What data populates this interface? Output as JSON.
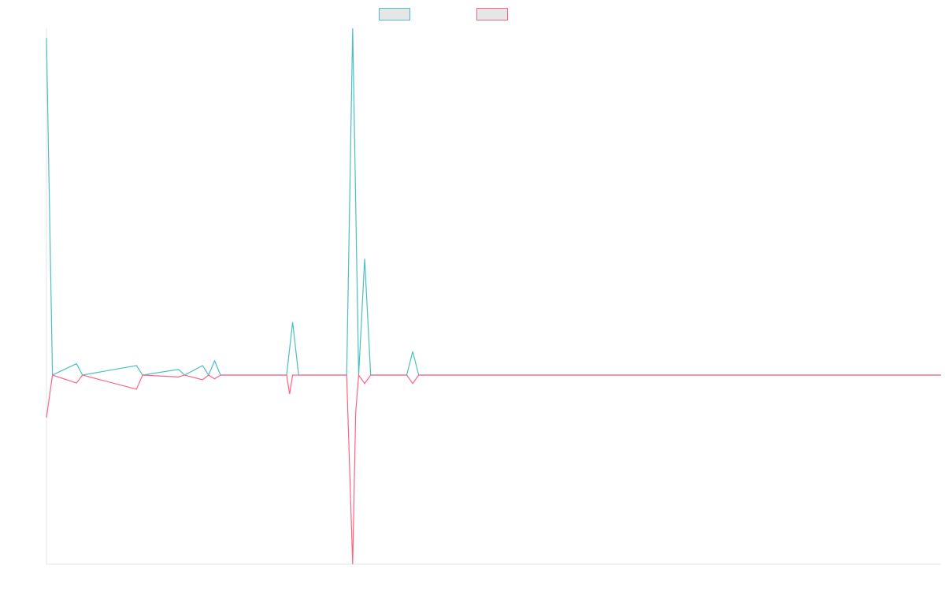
{
  "chart_data": {
    "type": "line",
    "title": "",
    "xlabel": "",
    "ylabel": "",
    "grid": false,
    "legend_placement": "top-center",
    "ylim": [
      -1,
      1.833
    ],
    "x_count": 150,
    "series": [
      {
        "color": "#4bc0c0",
        "legend_fill": "#e6e6e6",
        "points": [
          [
            0,
            1.782
          ],
          [
            1,
            0
          ],
          [
            5,
            0.06
          ],
          [
            6,
            0
          ],
          [
            15,
            0.05
          ],
          [
            16,
            0
          ],
          [
            22,
            0.03
          ],
          [
            23,
            0
          ],
          [
            26,
            0.05
          ],
          [
            27,
            0
          ],
          [
            28,
            0.075
          ],
          [
            29,
            0
          ],
          [
            40,
            0
          ],
          [
            41,
            0.28
          ],
          [
            42,
            0
          ],
          [
            50,
            0
          ],
          [
            51,
            1.833
          ],
          [
            52,
            0
          ],
          [
            53,
            0.615
          ],
          [
            54,
            0
          ],
          [
            60,
            0
          ],
          [
            61,
            0.125
          ],
          [
            62,
            0
          ],
          [
            149,
            0
          ]
        ]
      },
      {
        "color": "#ff6384",
        "legend_fill": "#e6e6e6",
        "points": [
          [
            0,
            -0.225
          ],
          [
            1,
            0
          ],
          [
            5,
            -0.042
          ],
          [
            6,
            0
          ],
          [
            15,
            -0.075
          ],
          [
            16,
            0
          ],
          [
            22,
            -0.01
          ],
          [
            23,
            0
          ],
          [
            26,
            -0.025
          ],
          [
            27,
            0
          ],
          [
            28,
            -0.02
          ],
          [
            29,
            0
          ],
          [
            40,
            0
          ],
          [
            40.5,
            -0.1
          ],
          [
            41,
            0
          ],
          [
            50,
            0
          ],
          [
            51,
            -1
          ],
          [
            51.5,
            -0.2
          ],
          [
            52,
            0
          ],
          [
            53,
            -0.045
          ],
          [
            54,
            0
          ],
          [
            60,
            0
          ],
          [
            61,
            -0.045
          ],
          [
            62,
            0
          ],
          [
            149,
            0
          ]
        ]
      }
    ]
  }
}
